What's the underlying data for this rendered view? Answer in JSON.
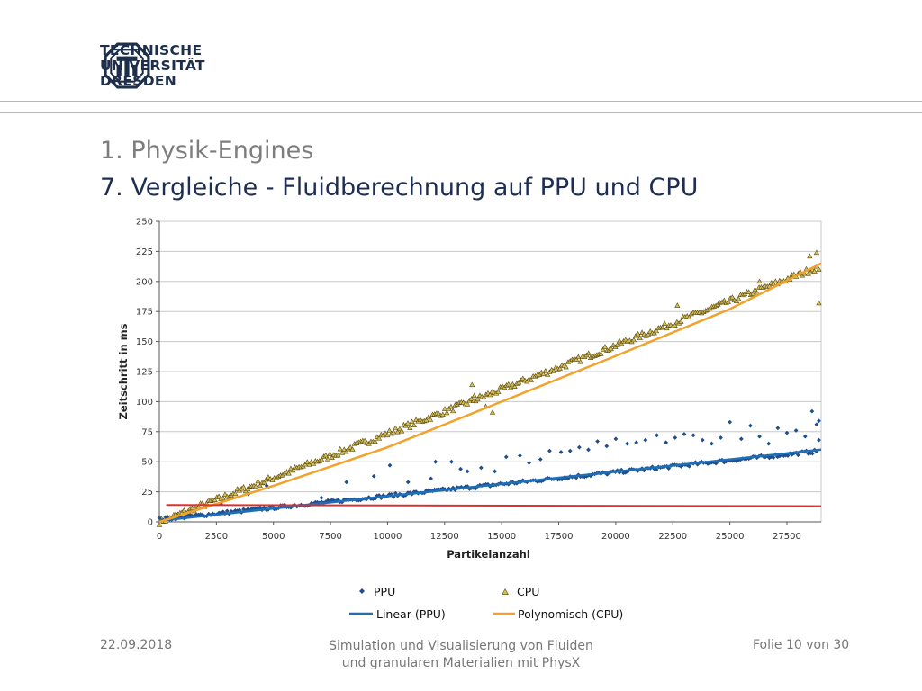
{
  "header": {
    "university_line1": "TECHNISCHE",
    "university_line2": "UNIVERSITÄT",
    "university_line3": "DRESDEN"
  },
  "slide": {
    "title_section": "1. Physik-Engines",
    "title_main": "7. Vergleiche - Fluidberechnung auf PPU und CPU"
  },
  "footer": {
    "date": "22.09.2018",
    "center_line1": "Simulation und Visualisierung von Fluiden",
    "center_line2": "und granularen Materialien mit PhysX",
    "page": "Folie 10 von 30"
  },
  "colors": {
    "ppu": "#1f4e8c",
    "cpu_marker": "#d6c05a",
    "linear_ppu": "#1f6fb8",
    "poly_cpu": "#f2a22a",
    "flat_line": "#e0302a",
    "grid": "#c8c8c8"
  },
  "chart_data": {
    "type": "scatter",
    "xlabel": "Partikelanzahl",
    "ylabel": "Zeitschritt in ms",
    "xlim": [
      0,
      29000
    ],
    "ylim": [
      0,
      250
    ],
    "xticks": [
      0,
      2500,
      5000,
      7500,
      10000,
      12500,
      15000,
      17500,
      20000,
      22500,
      25000,
      27500
    ],
    "yticks": [
      0,
      25,
      50,
      75,
      100,
      125,
      150,
      175,
      200,
      225,
      250
    ],
    "grid": "horizontal",
    "legend_position": "bottom",
    "series": [
      {
        "name": "PPU",
        "kind": "scatter",
        "marker": "diamond",
        "main_trend": {
          "x": [
            0,
            29000
          ],
          "y": [
            2,
            59
          ]
        },
        "outliers": [
          {
            "x": 2700,
            "y": 15
          },
          {
            "x": 3900,
            "y": 23
          },
          {
            "x": 4700,
            "y": 30
          },
          {
            "x": 7100,
            "y": 20
          },
          {
            "x": 8200,
            "y": 33
          },
          {
            "x": 9400,
            "y": 38
          },
          {
            "x": 10100,
            "y": 47
          },
          {
            "x": 10900,
            "y": 33
          },
          {
            "x": 11900,
            "y": 36
          },
          {
            "x": 12100,
            "y": 50
          },
          {
            "x": 12800,
            "y": 50
          },
          {
            "x": 13200,
            "y": 44
          },
          {
            "x": 13500,
            "y": 42
          },
          {
            "x": 14100,
            "y": 45
          },
          {
            "x": 14700,
            "y": 42
          },
          {
            "x": 15200,
            "y": 54
          },
          {
            "x": 15800,
            "y": 55
          },
          {
            "x": 16200,
            "y": 49
          },
          {
            "x": 16700,
            "y": 52
          },
          {
            "x": 17100,
            "y": 59
          },
          {
            "x": 17600,
            "y": 58
          },
          {
            "x": 18000,
            "y": 59
          },
          {
            "x": 18400,
            "y": 62
          },
          {
            "x": 18800,
            "y": 60
          },
          {
            "x": 19200,
            "y": 67
          },
          {
            "x": 19600,
            "y": 63
          },
          {
            "x": 20000,
            "y": 69
          },
          {
            "x": 20500,
            "y": 65
          },
          {
            "x": 20900,
            "y": 66
          },
          {
            "x": 21300,
            "y": 68
          },
          {
            "x": 21800,
            "y": 72
          },
          {
            "x": 22200,
            "y": 66
          },
          {
            "x": 22600,
            "y": 70
          },
          {
            "x": 23000,
            "y": 73
          },
          {
            "x": 23400,
            "y": 72
          },
          {
            "x": 23800,
            "y": 68
          },
          {
            "x": 24200,
            "y": 65
          },
          {
            "x": 24600,
            "y": 70
          },
          {
            "x": 25000,
            "y": 83
          },
          {
            "x": 25500,
            "y": 69
          },
          {
            "x": 25900,
            "y": 80
          },
          {
            "x": 26300,
            "y": 71
          },
          {
            "x": 26700,
            "y": 65
          },
          {
            "x": 27100,
            "y": 78
          },
          {
            "x": 27500,
            "y": 74
          },
          {
            "x": 27900,
            "y": 76
          },
          {
            "x": 28300,
            "y": 71
          },
          {
            "x": 28600,
            "y": 92
          },
          {
            "x": 28800,
            "y": 81
          },
          {
            "x": 28900,
            "y": 84
          },
          {
            "x": 28900,
            "y": 68
          }
        ]
      },
      {
        "name": "CPU",
        "kind": "scatter",
        "marker": "triangle",
        "main_trend": {
          "x": [
            0,
            29000
          ],
          "y": [
            0,
            213
          ]
        },
        "outliers": [
          {
            "x": 13700,
            "y": 114
          },
          {
            "x": 13800,
            "y": 105
          },
          {
            "x": 14300,
            "y": 96
          },
          {
            "x": 14600,
            "y": 91
          },
          {
            "x": 22700,
            "y": 180
          },
          {
            "x": 26300,
            "y": 200
          },
          {
            "x": 28500,
            "y": 221
          },
          {
            "x": 28800,
            "y": 224
          },
          {
            "x": 28900,
            "y": 210
          },
          {
            "x": 28900,
            "y": 182
          }
        ]
      },
      {
        "name": "Linear (PPU)",
        "kind": "line",
        "x": [
          0,
          29000
        ],
        "y": [
          1,
          60
        ]
      },
      {
        "name": "Polynomisch (CPU)",
        "kind": "line",
        "x": [
          0,
          5000,
          10000,
          15000,
          20000,
          25000,
          29000
        ],
        "y": [
          0,
          30,
          62,
          100,
          138,
          177,
          215
        ]
      },
      {
        "kind": "line",
        "x": [
          300,
          29000
        ],
        "y": [
          14,
          13
        ]
      }
    ]
  }
}
